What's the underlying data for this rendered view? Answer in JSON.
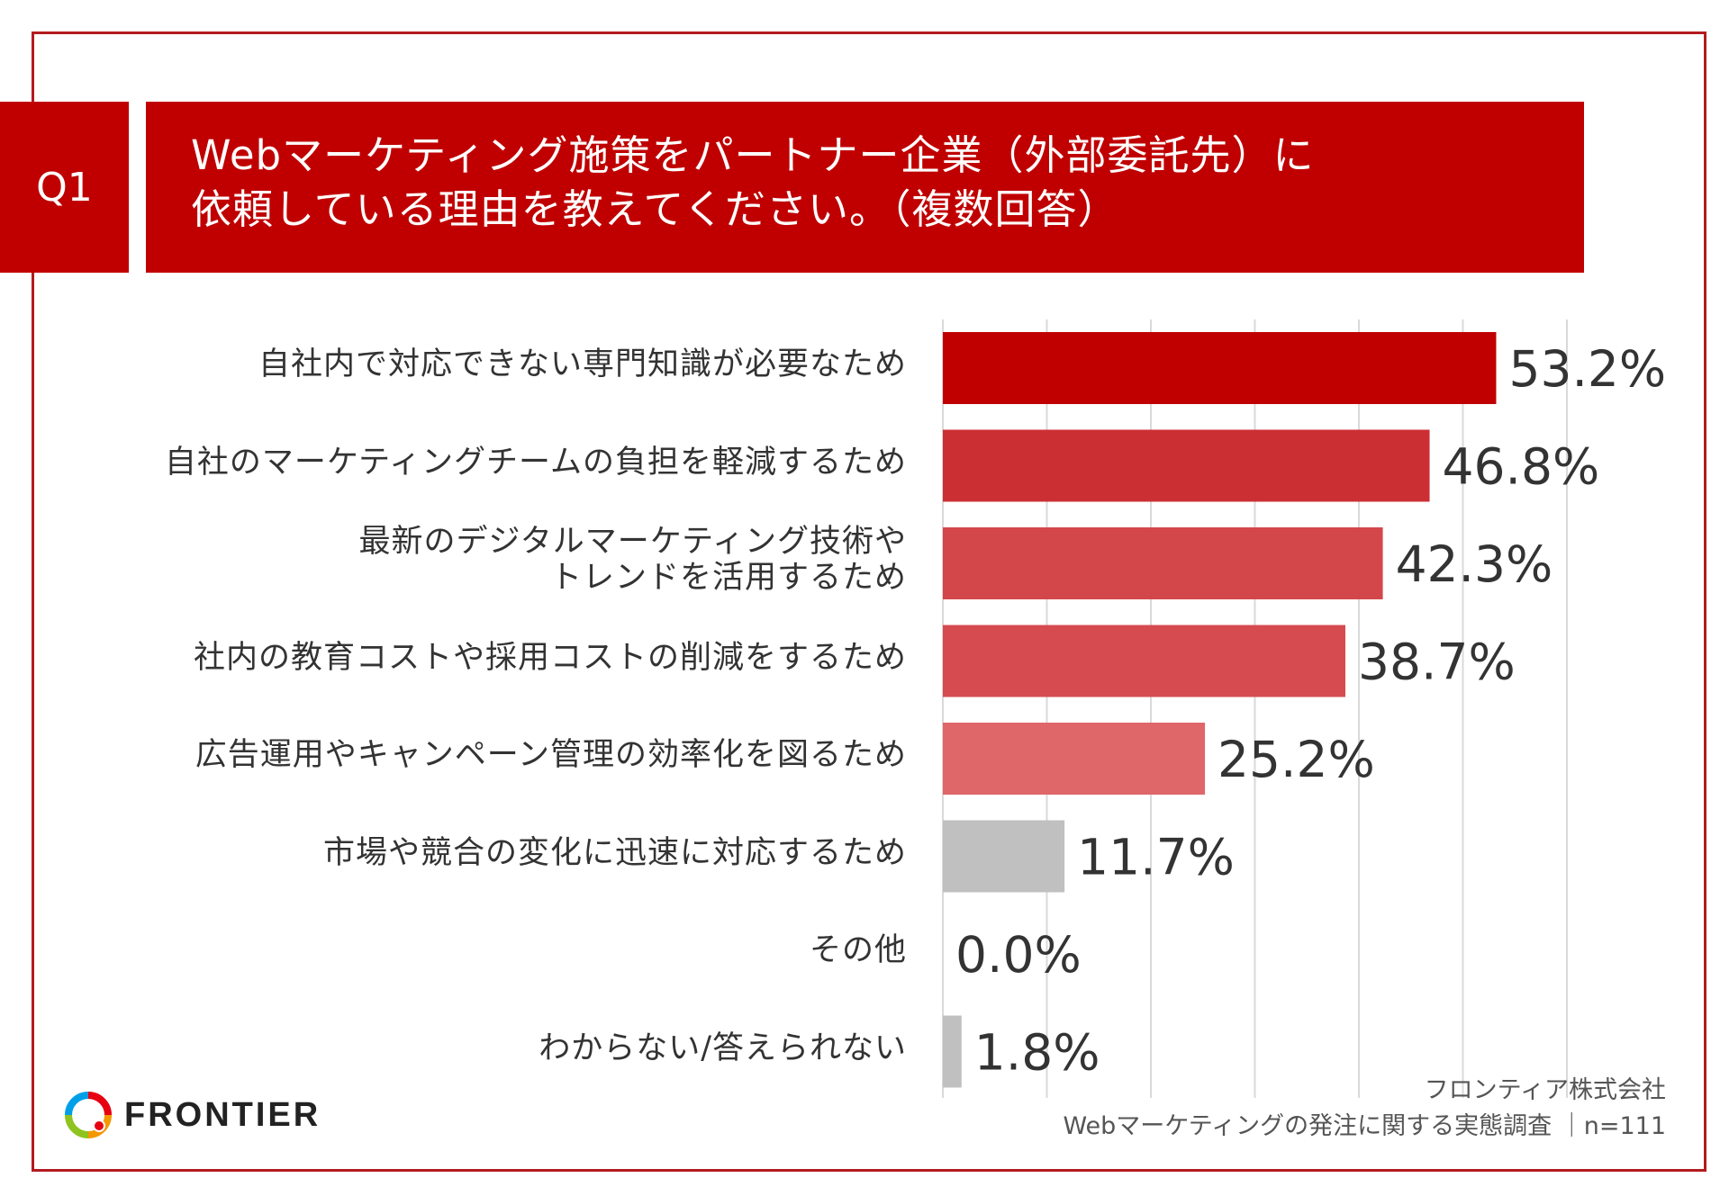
{
  "question": {
    "badge": "Q1",
    "title_line1": "Webマーケティング施策をパートナー企業（外部委託先）に",
    "title_line2": "依頼している理由を教えてください。（複数回答）"
  },
  "chart_data": {
    "type": "bar",
    "orientation": "horizontal",
    "categories": [
      [
        "自社内で対応できない専門知識が必要なため"
      ],
      [
        "自社のマーケティングチームの負担を軽減するため"
      ],
      [
        "最新のデジタルマーケティング技術や",
        "トレンドを活用するため"
      ],
      [
        "社内の教育コストや採用コストの削減をするため"
      ],
      [
        "広告運用やキャンペーン管理の効率化を図るため"
      ],
      [
        "市場や競合の変化に迅速に対応するため"
      ],
      [
        "その他"
      ],
      [
        "わからない/答えられない"
      ]
    ],
    "values": [
      53.2,
      46.8,
      42.3,
      38.7,
      25.2,
      11.7,
      0.0,
      1.8
    ],
    "value_labels": [
      "53.2%",
      "46.8%",
      "42.3%",
      "38.7%",
      "25.2%",
      "11.7%",
      "0.0%",
      "1.8%"
    ],
    "bar_colors": [
      "#c00000",
      "#cc2f33",
      "#d3474b",
      "#d54b4f",
      "#df6669",
      "#c0c0c0",
      "#c0c0c0",
      "#c0c0c0"
    ],
    "xlim": [
      0,
      60
    ],
    "grid": true,
    "unit": "%"
  },
  "credit": {
    "company": "フロンティア株式会社",
    "survey": "Webマーケティングの発注に関する実態調査 ｜n=111"
  },
  "logo": {
    "text": "FRONTIER",
    "colors": [
      "#e60012",
      "#f39800",
      "#8fc31f",
      "#009fe8"
    ]
  }
}
